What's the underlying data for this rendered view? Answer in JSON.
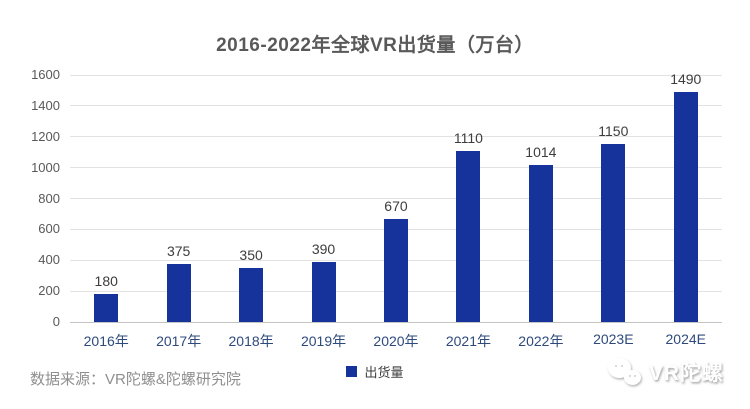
{
  "title": "2016-2022年全球VR出货量（万台）",
  "chart_data": {
    "type": "bar",
    "title": "2016-2022年全球VR出货量（万台）",
    "categories": [
      "2016年",
      "2017年",
      "2018年",
      "2019年",
      "2020年",
      "2021年",
      "2022年",
      "2023E",
      "2024E"
    ],
    "values": [
      180,
      375,
      350,
      390,
      670,
      1110,
      1014,
      1150,
      1490
    ],
    "series_name": "出货量",
    "xlabel": "",
    "ylabel": "",
    "ylim": [
      0,
      1600
    ],
    "yticks": [
      0,
      200,
      400,
      600,
      800,
      1000,
      1200,
      1400,
      1600
    ],
    "grid": true,
    "legend_position": "bottom",
    "bar_color": "#16339c",
    "data_labels_shown": true
  },
  "legend": {
    "label": "出货量"
  },
  "footer": {
    "source": "数据来源：VR陀螺&陀螺研究院"
  },
  "watermark": {
    "icon": "chat-bubbles-icon",
    "text": "VR陀螺"
  },
  "colors": {
    "bar": "#16339c",
    "title_text": "#595959",
    "axis_label_text": "#2e4a7d",
    "value_label_text": "#3d3d3d",
    "gridline": "#e2e2e2",
    "source_text": "#8f8f8f"
  }
}
